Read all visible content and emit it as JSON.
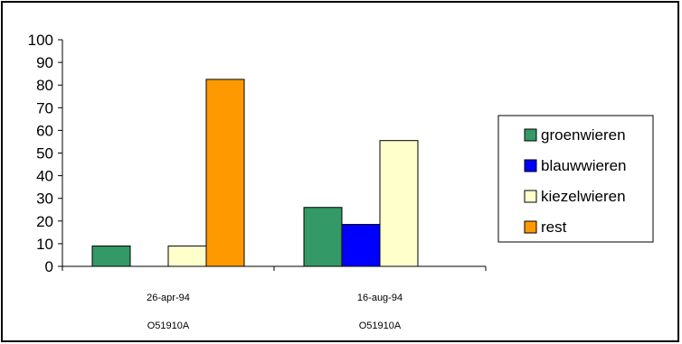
{
  "chart_data": {
    "type": "bar",
    "categories": [
      {
        "date": "26-apr-94",
        "station": "O51910A"
      },
      {
        "date": "16-aug-94",
        "station": "O51910A"
      }
    ],
    "series": [
      {
        "name": "groenwieren",
        "color": "#339966",
        "values": [
          9,
          26
        ]
      },
      {
        "name": "blauwwieren",
        "color": "#0000ff",
        "values": [
          0,
          18.5
        ]
      },
      {
        "name": "kiezelwieren",
        "color": "#ffffcc",
        "values": [
          9,
          55.5
        ]
      },
      {
        "name": "rest",
        "color": "#ff9900",
        "values": [
          82.5,
          0
        ]
      }
    ],
    "yticks": [
      "0",
      "10",
      "20",
      "30",
      "40",
      "50",
      "60",
      "70",
      "80",
      "90",
      "100"
    ],
    "ylim": [
      0,
      100
    ],
    "grid": false,
    "legend_position": "right"
  }
}
